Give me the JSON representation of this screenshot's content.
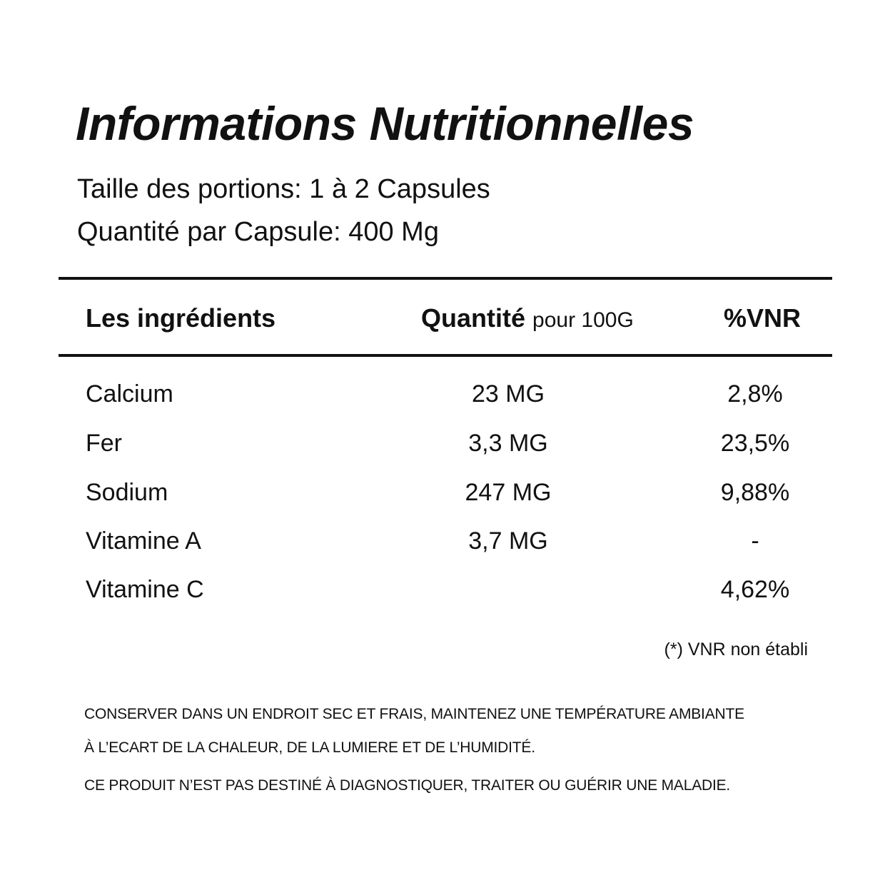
{
  "header": {
    "title": "Informations Nutritionnelles",
    "lines": [
      "Taille des portions: 1 à 2 Capsules",
      "Quantité par Capsule: 400 Mg"
    ]
  },
  "table": {
    "columns": {
      "ingredient": "Les ingrédients",
      "quantity": "Quantité",
      "quantity_unit": "pour 100G",
      "vnr": "%VNR"
    },
    "rows": [
      [
        "Calcium",
        "23 MG",
        "2,8%"
      ],
      [
        "Fer",
        "3,3 MG",
        "23,5%"
      ],
      [
        "Sodium",
        "247 MG",
        "9,88%"
      ],
      [
        "Vitamine A",
        "3,7 MG",
        "-"
      ],
      [
        "Vitamine C",
        null,
        "4,62%"
      ]
    ]
  },
  "footnote": "(*) VNR non établi",
  "notes": {
    "storage": [
      "CONSERVER DANS UN ENDROIT SEC ET FRAIS, MAINTENEZ UNE TEMPÉRATURE AMBIANTE",
      "À L’ECART DE LA CHALEUR, DE LA LUMIERE ET DE L’HUMIDITÉ."
    ],
    "disclaimer": "CE PRODUIT N’EST PAS DESTINÉ À DIAGNOSTIQUER, TRAITER OU GUÉRIR UNE MALADIE."
  }
}
